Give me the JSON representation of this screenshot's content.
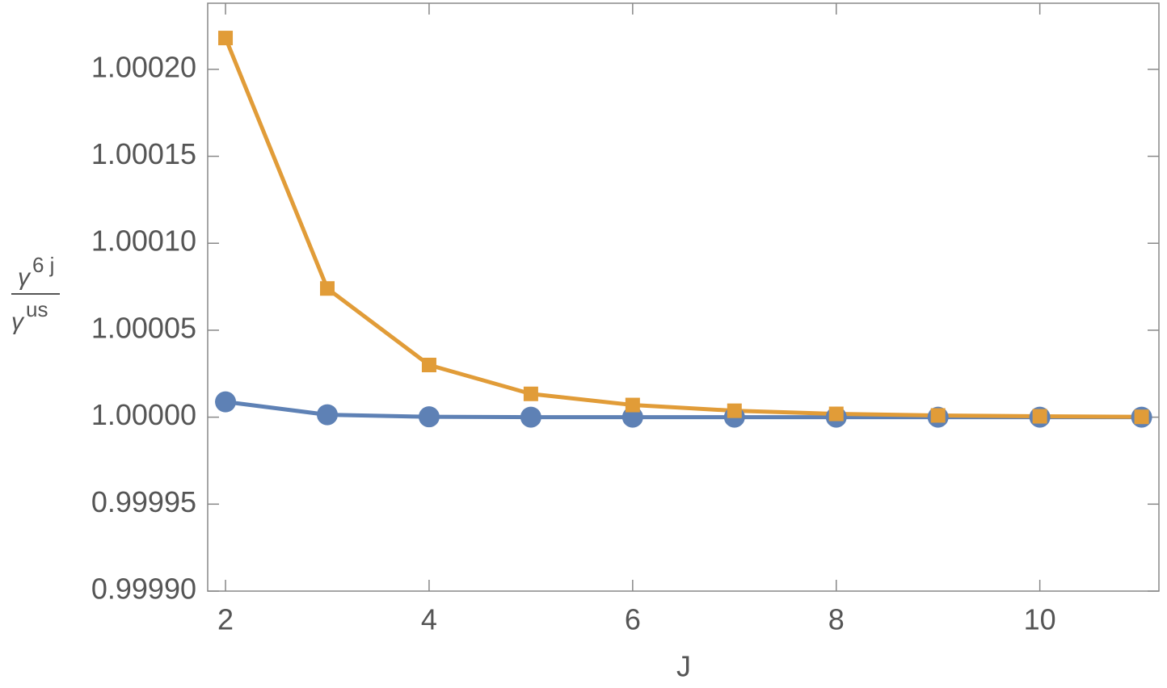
{
  "chart_data": {
    "type": "line",
    "xlabel": "J",
    "ylabel": {
      "numerator": "γ",
      "numerator_sup": "6 j",
      "denominator": "γ",
      "denominator_sup": "us"
    },
    "x": [
      2,
      3,
      4,
      5,
      6,
      7,
      8,
      9,
      10,
      11
    ],
    "series": [
      {
        "color": "#5e81b5",
        "marker": "circle",
        "values": [
          1.0000088,
          1.0000014,
          1.0000002,
          1.0,
          1.0,
          1.0,
          1.0,
          1.0,
          1.0,
          1.0
        ]
      },
      {
        "color": "#e19c38",
        "marker": "square",
        "values": [
          1.000218,
          1.000074,
          1.00003,
          1.0000134,
          1.000007,
          1.0000037,
          1.0000019,
          1.000001,
          1.0000005,
          1.0000002
        ]
      }
    ],
    "xlim": [
      1.825,
      11.17
    ],
    "xticks": [
      2,
      4,
      6,
      8,
      10
    ],
    "ylim": [
      0.9999,
      1.000238
    ],
    "yticks": [
      {
        "value": 0.9999,
        "label": "0.99990"
      },
      {
        "value": 0.99995,
        "label": "0.99995"
      },
      {
        "value": 1.0,
        "label": "1.00000"
      },
      {
        "value": 1.00005,
        "label": "1.00005"
      },
      {
        "value": 1.0001,
        "label": "1.00010"
      },
      {
        "value": 1.00015,
        "label": "1.00015"
      },
      {
        "value": 1.0002,
        "label": "1.00020"
      }
    ],
    "grid": false
  }
}
